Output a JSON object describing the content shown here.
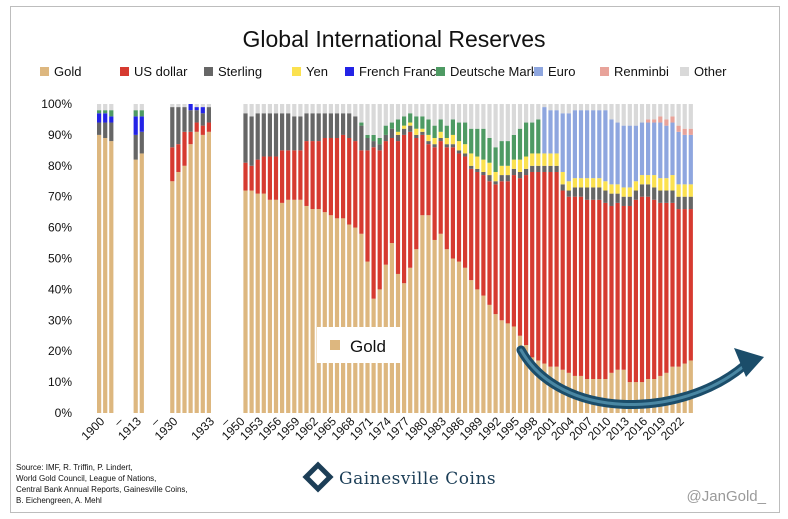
{
  "chart_data": {
    "type": "bar",
    "stacked": true,
    "title": "Global International Reserves",
    "ylim": [
      0,
      100
    ],
    "y_ticks": [
      "0%",
      "10%",
      "20%",
      "30%",
      "40%",
      "50%",
      "60%",
      "70%",
      "80%",
      "90%",
      "100%"
    ],
    "x_tick_labels": [
      "1900",
      "–",
      "1913",
      "–",
      "1930",
      "1933",
      "–",
      "1950",
      "1953",
      "1956",
      "1959",
      "1962",
      "1965",
      "1968",
      "1971",
      "1974",
      "1977",
      "1980",
      "1983",
      "1986",
      "1989",
      "1992",
      "1995",
      "1998",
      "2001",
      "2004",
      "2007",
      "2010",
      "2013",
      "2016",
      "2019",
      "2022"
    ],
    "legend": [
      {
        "name": "Gold",
        "color": "#ddb77f"
      },
      {
        "name": "US dollar",
        "color": "#d63a30"
      },
      {
        "name": "Sterling",
        "color": "#666666"
      },
      {
        "name": "Yen",
        "color": "#fbe14f"
      },
      {
        "name": "French Franc",
        "color": "#2323e6"
      },
      {
        "name": "Deutsche Mark",
        "color": "#4e9a63"
      },
      {
        "name": "Euro",
        "color": "#8ea6df"
      },
      {
        "name": "Renminbi",
        "color": "#e8a39a"
      },
      {
        "name": "Other",
        "color": "#d9d9d9"
      }
    ],
    "series_order": [
      "Gold",
      "US dollar",
      "Sterling",
      "Yen",
      "French Franc",
      "Deutsche Mark",
      "Euro",
      "Renminbi",
      "Other"
    ],
    "annotation": "Gold",
    "bars": [
      {
        "x": "1899",
        "v": [
          90,
          0,
          4,
          0,
          3,
          1,
          0,
          0,
          2
        ]
      },
      {
        "x": "1900",
        "v": [
          89,
          0,
          5,
          0,
          3,
          1,
          0,
          0,
          2
        ]
      },
      {
        "x": "1901",
        "v": [
          88,
          0,
          6,
          0,
          2,
          2,
          0,
          0,
          2
        ]
      },
      {
        "x": "1912",
        "v": [
          82,
          0,
          8,
          0,
          6,
          2,
          0,
          0,
          2
        ]
      },
      {
        "x": "1913",
        "v": [
          84,
          0,
          7,
          0,
          5,
          2,
          0,
          0,
          2
        ]
      },
      {
        "x": "1929",
        "v": [
          75,
          11,
          13,
          0,
          0,
          0,
          0,
          0,
          1
        ]
      },
      {
        "x": "1930",
        "v": [
          78,
          9,
          12,
          0,
          0,
          0,
          0,
          0,
          1
        ]
      },
      {
        "x": "1931",
        "v": [
          80,
          11,
          8,
          0,
          0,
          0,
          0,
          0,
          1
        ]
      },
      {
        "x": "1932",
        "v": [
          87,
          4,
          7,
          0,
          2,
          0,
          0,
          0,
          0
        ]
      },
      {
        "x": "1933",
        "v": [
          91,
          3,
          4,
          0,
          1,
          0,
          0,
          0,
          1
        ]
      },
      {
        "x": "1934",
        "v": [
          90,
          3,
          4,
          0,
          2,
          0,
          0,
          0,
          1
        ]
      },
      {
        "x": "1935",
        "v": [
          91,
          3,
          5,
          0,
          0,
          0,
          0,
          0,
          1
        ]
      },
      {
        "x": "1950",
        "v": [
          72,
          9,
          16,
          0,
          0,
          0,
          0,
          0,
          3
        ]
      },
      {
        "x": "1951",
        "v": [
          72,
          8,
          16,
          0,
          0,
          0,
          0,
          0,
          4
        ]
      },
      {
        "x": "1952",
        "v": [
          71,
          11,
          15,
          0,
          0,
          0,
          0,
          0,
          3
        ]
      },
      {
        "x": "1953",
        "v": [
          71,
          12,
          14,
          0,
          0,
          0,
          0,
          0,
          3
        ]
      },
      {
        "x": "1954",
        "v": [
          69,
          14,
          14,
          0,
          0,
          0,
          0,
          0,
          3
        ]
      },
      {
        "x": "1955",
        "v": [
          69,
          14,
          14,
          0,
          0,
          0,
          0,
          0,
          3
        ]
      },
      {
        "x": "1956",
        "v": [
          68,
          17,
          12,
          0,
          0,
          0,
          0,
          0,
          3
        ]
      },
      {
        "x": "1957",
        "v": [
          69,
          16,
          12,
          0,
          0,
          0,
          0,
          0,
          3
        ]
      },
      {
        "x": "1958",
        "v": [
          69,
          16,
          11,
          0,
          0,
          0,
          0,
          0,
          4
        ]
      },
      {
        "x": "1959",
        "v": [
          69,
          16,
          11,
          0,
          0,
          0,
          0,
          0,
          4
        ]
      },
      {
        "x": "1960",
        "v": [
          67,
          21,
          9,
          0,
          0,
          0,
          0,
          0,
          3
        ]
      },
      {
        "x": "1961",
        "v": [
          66,
          22,
          9,
          0,
          0,
          0,
          0,
          0,
          3
        ]
      },
      {
        "x": "1962",
        "v": [
          66,
          22,
          9,
          0,
          0,
          0,
          0,
          0,
          3
        ]
      },
      {
        "x": "1963",
        "v": [
          65,
          24,
          8,
          0,
          0,
          0,
          0,
          0,
          3
        ]
      },
      {
        "x": "1964",
        "v": [
          64,
          25,
          8,
          0,
          0,
          0,
          0,
          0,
          3
        ]
      },
      {
        "x": "1965",
        "v": [
          63,
          26,
          8,
          0,
          0,
          0,
          0,
          0,
          3
        ]
      },
      {
        "x": "1966",
        "v": [
          63,
          27,
          7,
          0,
          0,
          0,
          0,
          0,
          3
        ]
      },
      {
        "x": "1967",
        "v": [
          61,
          28,
          8,
          0,
          0,
          0,
          0,
          0,
          3
        ]
      },
      {
        "x": "1968",
        "v": [
          60,
          28,
          8,
          0,
          0,
          0,
          0,
          0,
          4
        ]
      },
      {
        "x": "1969",
        "v": [
          58,
          27,
          8,
          0,
          0,
          1,
          0,
          0,
          6
        ]
      },
      {
        "x": "1970",
        "v": [
          49,
          36,
          4,
          0,
          0,
          1,
          0,
          0,
          10
        ]
      },
      {
        "x": "1971",
        "v": [
          37,
          49,
          2,
          0,
          0,
          2,
          0,
          0,
          10
        ]
      },
      {
        "x": "1972",
        "v": [
          40,
          45,
          2,
          0,
          0,
          2,
          0,
          0,
          11
        ]
      },
      {
        "x": "1973",
        "v": [
          48,
          40,
          2,
          0,
          0,
          3,
          0,
          0,
          7
        ]
      },
      {
        "x": "1974",
        "v": [
          55,
          34,
          3,
          0,
          0,
          2,
          0,
          0,
          6
        ]
      },
      {
        "x": "1975",
        "v": [
          45,
          43,
          2,
          1,
          0,
          4,
          0,
          0,
          5
        ]
      },
      {
        "x": "1976",
        "v": [
          42,
          48,
          2,
          1,
          0,
          3,
          0,
          0,
          4
        ]
      },
      {
        "x": "1977",
        "v": [
          47,
          44,
          2,
          1,
          0,
          3,
          0,
          0,
          3
        ]
      },
      {
        "x": "1978",
        "v": [
          53,
          36,
          1,
          2,
          0,
          4,
          0,
          0,
          4
        ]
      },
      {
        "x": "1979",
        "v": [
          64,
          26,
          1,
          1,
          0,
          4,
          0,
          0,
          4
        ]
      },
      {
        "x": "1980",
        "v": [
          64,
          23,
          1,
          2,
          0,
          5,
          0,
          0,
          5
        ]
      },
      {
        "x": "1981",
        "v": [
          56,
          30,
          1,
          2,
          0,
          4,
          0,
          0,
          7
        ]
      },
      {
        "x": "1982",
        "v": [
          58,
          30,
          1,
          2,
          0,
          4,
          0,
          0,
          5
        ]
      },
      {
        "x": "1983",
        "v": [
          53,
          33,
          1,
          2,
          0,
          4,
          0,
          0,
          7
        ]
      },
      {
        "x": "1984",
        "v": [
          50,
          36,
          1,
          3,
          0,
          5,
          0,
          0,
          5
        ]
      },
      {
        "x": "1985",
        "v": [
          49,
          35,
          1,
          3,
          0,
          6,
          0,
          0,
          6
        ]
      },
      {
        "x": "1986",
        "v": [
          47,
          36,
          1,
          3,
          0,
          7,
          0,
          0,
          6
        ]
      },
      {
        "x": "1987",
        "v": [
          43,
          36,
          1,
          4,
          0,
          8,
          0,
          0,
          8
        ]
      },
      {
        "x": "1988",
        "v": [
          40,
          38,
          1,
          4,
          0,
          9,
          0,
          0,
          8
        ]
      },
      {
        "x": "1989",
        "v": [
          38,
          39,
          1,
          4,
          0,
          10,
          0,
          0,
          8
        ]
      },
      {
        "x": "1990",
        "v": [
          35,
          40,
          2,
          4,
          0,
          8,
          0,
          0,
          11
        ]
      },
      {
        "x": "1991",
        "v": [
          32,
          42,
          1,
          3,
          0,
          8,
          0,
          0,
          14
        ]
      },
      {
        "x": "1992",
        "v": [
          30,
          45,
          2,
          3,
          0,
          8,
          0,
          0,
          12
        ]
      },
      {
        "x": "1993",
        "v": [
          29,
          46,
          2,
          3,
          0,
          8,
          0,
          0,
          12
        ]
      },
      {
        "x": "1994",
        "v": [
          28,
          49,
          2,
          3,
          0,
          8,
          0,
          0,
          10
        ]
      },
      {
        "x": "1995",
        "v": [
          25,
          51,
          2,
          4,
          0,
          10,
          0,
          0,
          8
        ]
      },
      {
        "x": "1996",
        "v": [
          22,
          55,
          2,
          4,
          0,
          11,
          0,
          0,
          6
        ]
      },
      {
        "x": "1997",
        "v": [
          18,
          60,
          2,
          4,
          0,
          10,
          0,
          0,
          6
        ]
      },
      {
        "x": "1998",
        "v": [
          17,
          61,
          2,
          4,
          0,
          11,
          0,
          0,
          5
        ]
      },
      {
        "x": "1999",
        "v": [
          16,
          62,
          2,
          4,
          0,
          0,
          15,
          0,
          1
        ]
      },
      {
        "x": "2000",
        "v": [
          15,
          63,
          2,
          4,
          0,
          0,
          14,
          0,
          2
        ]
      },
      {
        "x": "2001",
        "v": [
          15,
          63,
          2,
          4,
          0,
          0,
          14,
          0,
          2
        ]
      },
      {
        "x": "2002",
        "v": [
          14,
          58,
          2,
          4,
          0,
          0,
          19,
          0,
          3
        ]
      },
      {
        "x": "2003",
        "v": [
          13,
          57,
          2,
          3,
          0,
          0,
          22,
          0,
          3
        ]
      },
      {
        "x": "2004",
        "v": [
          12,
          58,
          3,
          3,
          0,
          0,
          22,
          0,
          2
        ]
      },
      {
        "x": "2005",
        "v": [
          12,
          58,
          3,
          3,
          0,
          0,
          22,
          0,
          2
        ]
      },
      {
        "x": "2006",
        "v": [
          11,
          58,
          4,
          3,
          0,
          0,
          22,
          0,
          2
        ]
      },
      {
        "x": "2007",
        "v": [
          11,
          58,
          4,
          3,
          0,
          0,
          22,
          0,
          2
        ]
      },
      {
        "x": "2008",
        "v": [
          11,
          58,
          4,
          3,
          0,
          0,
          22,
          0,
          2
        ]
      },
      {
        "x": "2009",
        "v": [
          11,
          57,
          4,
          3,
          0,
          0,
          23,
          0,
          2
        ]
      },
      {
        "x": "2010",
        "v": [
          13,
          54,
          4,
          3,
          0,
          0,
          21,
          0,
          5
        ]
      },
      {
        "x": "2011",
        "v": [
          14,
          54,
          3,
          3,
          0,
          0,
          20,
          0,
          6
        ]
      },
      {
        "x": "2012",
        "v": [
          14,
          53,
          3,
          3,
          0,
          0,
          20,
          0,
          7
        ]
      },
      {
        "x": "2013",
        "v": [
          10,
          57,
          3,
          3,
          0,
          0,
          20,
          0,
          7
        ]
      },
      {
        "x": "2014",
        "v": [
          10,
          59,
          3,
          3,
          0,
          0,
          18,
          0,
          7
        ]
      },
      {
        "x": "2015",
        "v": [
          10,
          60,
          4,
          3,
          0,
          0,
          17,
          0,
          6
        ]
      },
      {
        "x": "2016",
        "v": [
          11,
          59,
          4,
          3,
          0,
          0,
          17,
          1,
          5
        ]
      },
      {
        "x": "2017",
        "v": [
          11,
          58,
          4,
          4,
          0,
          0,
          17,
          1,
          5
        ]
      },
      {
        "x": "2018",
        "v": [
          12,
          56,
          4,
          4,
          0,
          0,
          18,
          2,
          4
        ]
      },
      {
        "x": "2019",
        "v": [
          13,
          55,
          4,
          4,
          0,
          0,
          17,
          2,
          5
        ]
      },
      {
        "x": "2020",
        "v": [
          15,
          53,
          4,
          5,
          0,
          0,
          17,
          2,
          4
        ]
      },
      {
        "x": "2021",
        "v": [
          15,
          51,
          4,
          4,
          0,
          0,
          17,
          2,
          7
        ]
      },
      {
        "x": "2022",
        "v": [
          16,
          50,
          4,
          4,
          0,
          0,
          16,
          2,
          8
        ]
      },
      {
        "x": "2023",
        "v": [
          17,
          49,
          4,
          4,
          0,
          0,
          16,
          2,
          8
        ]
      }
    ]
  },
  "source_lines": [
    "Source: IMF, R. Triffin, P. Lindert,",
    "World Gold Council, League of Nations,",
    "Central Bank Annual Reports, Gainesville Coins,",
    "B. Eichengreen, A. Mehl"
  ],
  "brand": "Gainesville Coins",
  "watermark": "@JanGold_"
}
